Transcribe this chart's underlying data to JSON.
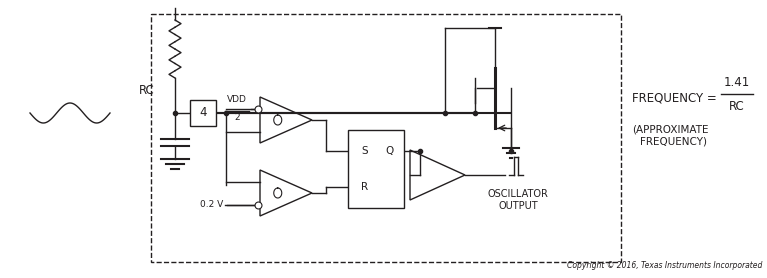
{
  "bg_color": "#ffffff",
  "line_color": "#231f20",
  "fig_width": 7.67,
  "fig_height": 2.78,
  "dpi": 100,
  "copyright_text": "Copyright © 2016, Texas Instruments Incorporated",
  "freq_label": "FREQUENCY = ",
  "freq_num": "1.41",
  "freq_den": "RC",
  "approx1": "(APPROXIMATE",
  "approx2": "  FREQUENCY)",
  "osc1": "OSCILLATOR",
  "osc2": "OUTPUT",
  "vdd_text": "VDD",
  "vdd2_text": "2",
  "v02_text": "0.2 V",
  "rc_text": "RC",
  "pin4_text": "4",
  "s_text": "S",
  "q_text": "Q",
  "r_text": "R"
}
